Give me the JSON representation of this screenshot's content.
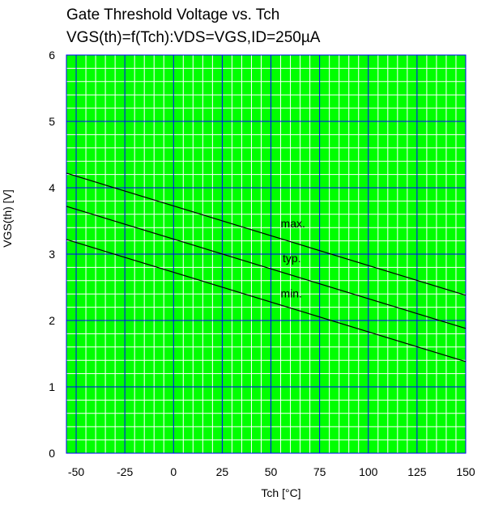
{
  "chart_data": {
    "type": "line",
    "title": "Gate Threshold Voltage vs. Tch",
    "subtitle": "VGS(th)=f(Tch):VDS=VGS,ID=250µA",
    "xlabel": "Tch [°C]",
    "ylabel": "VGS(th) [V]",
    "xlim": [
      -55,
      150
    ],
    "ylim": [
      0,
      6
    ],
    "x_ticks": [
      -50,
      -25,
      0,
      25,
      50,
      75,
      100,
      125,
      150
    ],
    "y_ticks": [
      0,
      1,
      2,
      3,
      4,
      5,
      6
    ],
    "grid": true,
    "colors": {
      "background": "#00ff00",
      "minor_grid": "#ffffff",
      "major_grid": "#0000ff",
      "line": "#000000"
    },
    "series": [
      {
        "name": "max.",
        "x": [
          -55,
          150
        ],
        "y": [
          4.22,
          2.38
        ]
      },
      {
        "name": "typ.",
        "x": [
          -55,
          150
        ],
        "y": [
          3.72,
          1.88
        ]
      },
      {
        "name": "min.",
        "x": [
          -55,
          150
        ],
        "y": [
          3.22,
          1.38
        ]
      }
    ],
    "annotations": [
      {
        "text": "max.",
        "x": 55,
        "y": 3.4
      },
      {
        "text": "typ.",
        "x": 56,
        "y": 2.88
      },
      {
        "text": "min.",
        "x": 55,
        "y": 2.35
      }
    ]
  }
}
